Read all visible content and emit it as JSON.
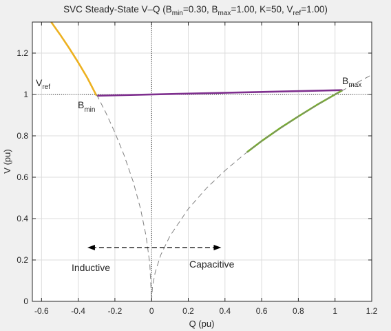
{
  "chart_data": {
    "type": "line",
    "title": "SVC Steady-State V–Q (B",
    "title_parts": {
      "bmin_sub": "min",
      "bmin_eq": "=0.30, B",
      "bmax_sub": "max",
      "bmax_eq": "=1.00, K=50, V",
      "vref_sub": "ref",
      "vref_eq": "=1.00)"
    },
    "xlabel": "Q (pu)",
    "ylabel": "V (pu)",
    "xlim": [
      -0.65,
      1.2
    ],
    "ylim": [
      0,
      1.35
    ],
    "xticks": [
      -0.6,
      -0.4,
      -0.2,
      0,
      0.2,
      0.4,
      0.6,
      0.8,
      1,
      1.2
    ],
    "xtick_labels": [
      "-0.6",
      "-0.4",
      "-0.2",
      "0",
      "0.2",
      "0.4",
      "0.6",
      "0.8",
      "1",
      "1.2"
    ],
    "yticks": [
      0,
      0.2,
      0.4,
      0.6,
      0.8,
      1,
      1.2
    ],
    "ytick_labels": [
      "0",
      "0.2",
      "0.4",
      "0.6",
      "0.8",
      "1",
      "1.2"
    ],
    "grid": true,
    "reference_lines": {
      "vref": 1.0,
      "q_zero": 0
    },
    "series": [
      {
        "color": "#EDB120",
        "style": "solid",
        "x": [
          -0.547,
          -0.5,
          -0.45,
          -0.4,
          -0.35,
          -0.3
        ],
        "y": [
          1.35,
          1.291,
          1.225,
          1.155,
          1.08,
          0.994
        ]
      },
      {
        "color": "#7E2F8E",
        "style": "solid",
        "x": [
          -0.298,
          1.04
        ],
        "y": [
          0.994,
          1.021
        ]
      },
      {
        "color": "#77AC30",
        "style": "solid",
        "x": [
          0.52,
          0.6,
          0.7,
          0.8,
          0.9,
          1.0,
          1.04
        ],
        "y": [
          0.721,
          0.775,
          0.837,
          0.894,
          0.949,
          1.0,
          1.02
        ]
      },
      {
        "color": "#808080",
        "style": "dashed",
        "x": [
          -0.3,
          -0.25,
          -0.2,
          -0.15,
          -0.1,
          -0.06,
          -0.03,
          -0.01,
          0
        ],
        "y": [
          1.0,
          0.913,
          0.816,
          0.707,
          0.577,
          0.447,
          0.316,
          0.183,
          0
        ]
      },
      {
        "color": "#808080",
        "style": "dashed",
        "x": [
          0,
          0.005,
          0.02,
          0.05,
          0.1,
          0.2,
          0.3,
          0.4,
          0.5,
          0.6,
          0.8,
          1.0,
          1.2
        ],
        "y": [
          0,
          0.071,
          0.141,
          0.224,
          0.316,
          0.447,
          0.548,
          0.632,
          0.707,
          0.775,
          0.894,
          1.0,
          1.095
        ]
      }
    ],
    "arrow": {
      "x": [
        -0.35,
        0.38
      ],
      "y": [
        0.26,
        0.26
      ]
    },
    "annotations": {
      "vref_label": "V",
      "vref_sub": "ref",
      "bmin_label": "B",
      "bmin_sub": "min",
      "bmax_label": "B",
      "bmax_sub": "max",
      "inductive": "Inductive",
      "capacitive": "Capacitive"
    }
  }
}
